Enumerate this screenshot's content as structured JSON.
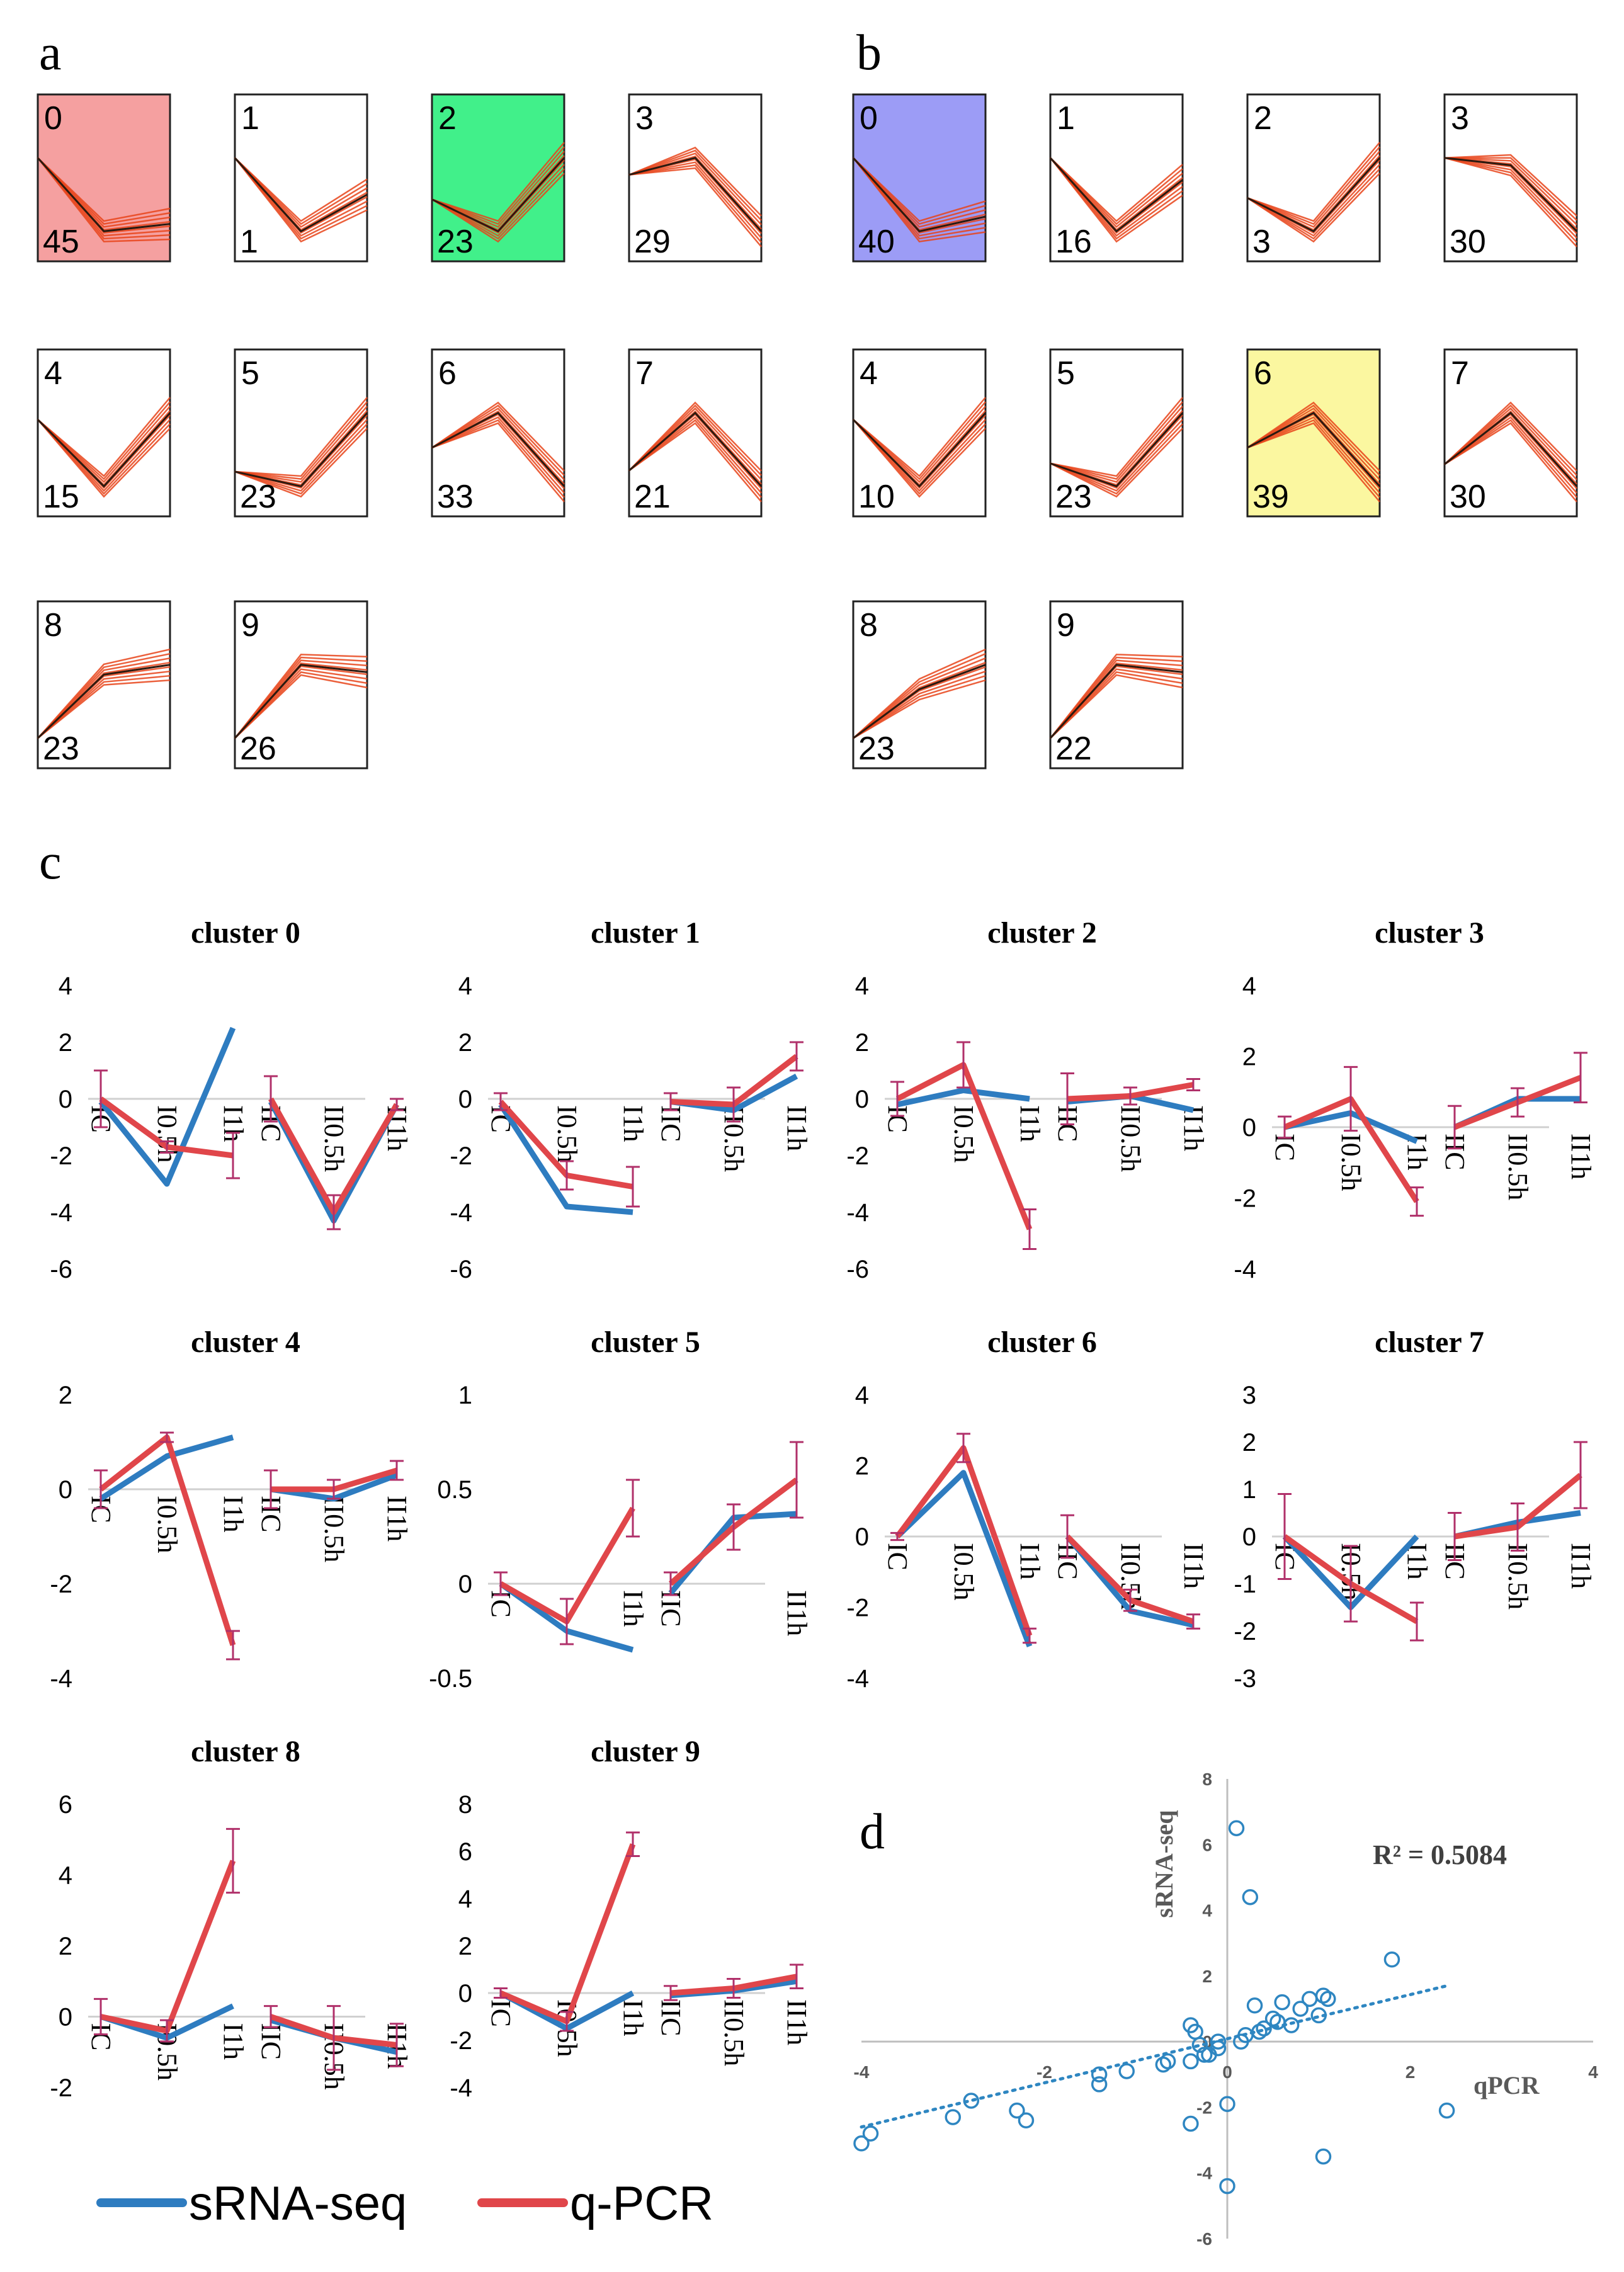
{
  "panel_labels": {
    "a": "a",
    "b": "b",
    "c": "c",
    "d": "d"
  },
  "colors": {
    "srna": "#2e7cc0",
    "qpcr": "#e0464a",
    "errbar": "#b0306a",
    "profile_line": "#e8441a",
    "profile_mean": "#2a1a10",
    "highlight_red": "#f5a0a0",
    "highlight_green": "#41f08a",
    "highlight_blue": "#9c9cf6",
    "highlight_yellow": "#fbf7a0",
    "scatter": "#2e86c1"
  },
  "chart_data": [
    {
      "type": "profile_grid",
      "panel": "a",
      "profiles": [
        {
          "id": "0",
          "count": "45",
          "shape": [
            1,
            0,
            0.1
          ],
          "highlight": "red"
        },
        {
          "id": "1",
          "count": "1",
          "shape": [
            1,
            0,
            0.5
          ],
          "highlight": "none"
        },
        {
          "id": "2",
          "count": "23",
          "shape": [
            1,
            0,
            2.3
          ],
          "highlight": "green"
        },
        {
          "id": "3",
          "count": "29",
          "shape": [
            1,
            1.3,
            0
          ],
          "highlight": "none"
        },
        {
          "id": "4",
          "count": "15",
          "shape": [
            1,
            0,
            1.1
          ],
          "highlight": "none"
        },
        {
          "id": "5",
          "count": "23",
          "shape": [
            0.8,
            0.5,
            2
          ],
          "highlight": "none"
        },
        {
          "id": "6",
          "count": "33",
          "shape": [
            1,
            1.9,
            0
          ],
          "highlight": "none"
        },
        {
          "id": "7",
          "count": "21",
          "shape": [
            0.9,
            2,
            0.6
          ],
          "highlight": "none"
        },
        {
          "id": "8",
          "count": "23",
          "shape": [
            0,
            1.3,
            1.5
          ],
          "highlight": "none"
        },
        {
          "id": "9",
          "count": "26",
          "shape": [
            0.3,
            1.3,
            1.2
          ],
          "highlight": "none"
        }
      ]
    },
    {
      "type": "profile_grid",
      "panel": "b",
      "profiles": [
        {
          "id": "0",
          "count": "40",
          "shape": [
            1,
            0,
            0.2
          ],
          "highlight": "blue"
        },
        {
          "id": "1",
          "count": "16",
          "shape": [
            1,
            0,
            0.7
          ],
          "highlight": "none"
        },
        {
          "id": "2",
          "count": "3",
          "shape": [
            1,
            0,
            2.2
          ],
          "highlight": "none"
        },
        {
          "id": "3",
          "count": "30",
          "shape": [
            1,
            0.9,
            0
          ],
          "highlight": "none"
        },
        {
          "id": "4",
          "count": "10",
          "shape": [
            1,
            0,
            1.1
          ],
          "highlight": "none"
        },
        {
          "id": "5",
          "count": "23",
          "shape": [
            0.8,
            0.3,
            1.9
          ],
          "highlight": "none"
        },
        {
          "id": "6",
          "count": "39",
          "shape": [
            1,
            1.9,
            0
          ],
          "highlight": "yellow"
        },
        {
          "id": "7",
          "count": "30",
          "shape": [
            0.9,
            1.6,
            0.6
          ],
          "highlight": "none"
        },
        {
          "id": "8",
          "count": "23",
          "shape": [
            0,
            1,
            1.5
          ],
          "highlight": "none"
        },
        {
          "id": "9",
          "count": "22",
          "shape": [
            0.3,
            1.3,
            1.2
          ],
          "highlight": "none"
        }
      ]
    },
    {
      "type": "line",
      "panel": "c",
      "legend": {
        "srna": "sRNA-seq",
        "qpcr": "q-PCR"
      },
      "clusters": [
        {
          "title": "cluster 0",
          "yticks": [
            "4",
            "2",
            "0",
            "-2",
            "-4",
            "-6"
          ],
          "ylim": [
            -6,
            4
          ],
          "g1_labels": [
            "IC",
            "I0.5h",
            "I1h"
          ],
          "g2_labels": [
            "IIC",
            "II0.5h",
            "II1h"
          ],
          "srna": [
            [
              -0.1,
              -3.0,
              2.5
            ],
            [
              -0.1,
              -4.3,
              -0.2
            ]
          ],
          "qpcr": [
            [
              0.0,
              -1.7,
              -2.0
            ],
            [
              0.0,
              -4.0,
              -0.2
            ]
          ],
          "err": [
            [
              1.0,
              0.2,
              0.8
            ],
            [
              0.8,
              0.6,
              0.2
            ]
          ]
        },
        {
          "title": "cluster 1",
          "yticks": [
            "4",
            "2",
            "0",
            "-2",
            "-4",
            "-6"
          ],
          "ylim": [
            -6,
            4
          ],
          "g1_labels": [
            "IC",
            "I0.5h",
            "I1h"
          ],
          "g2_labels": [
            "IIC",
            "II0.5h",
            "II1h"
          ],
          "srna": [
            [
              -0.2,
              -3.8,
              -4.0
            ],
            [
              -0.1,
              -0.4,
              0.8
            ]
          ],
          "qpcr": [
            [
              -0.1,
              -2.7,
              -3.1
            ],
            [
              -0.1,
              -0.2,
              1.5
            ]
          ],
          "err": [
            [
              0.3,
              0.5,
              0.7
            ],
            [
              0.3,
              0.6,
              0.5
            ]
          ]
        },
        {
          "title": "cluster 2",
          "yticks": [
            "4",
            "2",
            "0",
            "-2",
            "-4",
            "-6"
          ],
          "ylim": [
            -6,
            4
          ],
          "g1_labels": [
            "IC",
            "I0.5h",
            "I1h"
          ],
          "g2_labels": [
            "IIC",
            "II0.5h",
            "II1h"
          ],
          "srna": [
            [
              -0.2,
              0.3,
              0.0
            ],
            [
              -0.1,
              0.1,
              -0.4
            ]
          ],
          "qpcr": [
            [
              0.0,
              1.2,
              -4.6
            ],
            [
              0.0,
              0.1,
              0.5
            ]
          ],
          "err": [
            [
              0.6,
              0.8,
              0.7
            ],
            [
              0.9,
              0.3,
              0.2
            ]
          ]
        },
        {
          "title": "cluster 3",
          "yticks": [
            "4",
            "2",
            "0",
            "-2",
            "-4"
          ],
          "ylim": [
            -4,
            4
          ],
          "g1_labels": [
            "IC",
            "I0.5h",
            "I1h"
          ],
          "g2_labels": [
            "IIC",
            "II0.5h",
            "II1h"
          ],
          "srna": [
            [
              0.0,
              0.4,
              -0.4
            ],
            [
              0.0,
              0.8,
              0.8
            ]
          ],
          "qpcr": [
            [
              0.0,
              0.8,
              -2.1
            ],
            [
              0.0,
              0.7,
              1.4
            ]
          ],
          "err": [
            [
              0.3,
              0.9,
              0.4
            ],
            [
              0.6,
              0.4,
              0.7
            ]
          ]
        },
        {
          "title": "cluster 4",
          "yticks": [
            "2",
            "0",
            "-2",
            "-4"
          ],
          "ylim": [
            -4,
            2
          ],
          "g1_labels": [
            "IC",
            "I0.5h",
            "I1h"
          ],
          "g2_labels": [
            "IIC",
            "II0.5h",
            "II1h"
          ],
          "srna": [
            [
              -0.2,
              0.7,
              1.1
            ],
            [
              0.0,
              -0.2,
              0.3
            ]
          ],
          "qpcr": [
            [
              0.0,
              1.1,
              -3.3
            ],
            [
              0.0,
              0.0,
              0.4
            ]
          ],
          "err": [
            [
              0.4,
              0.1,
              0.3
            ],
            [
              0.4,
              0.2,
              0.2
            ]
          ]
        },
        {
          "title": "cluster 5",
          "yticks": [
            "1",
            "0.5",
            "0",
            "-0.5"
          ],
          "ylim": [
            -0.5,
            1
          ],
          "g1_labels": [
            "IC",
            "",
            "I1h"
          ],
          "g2_labels": [
            "IIC",
            "",
            "II1h"
          ],
          "srna": [
            [
              0.0,
              -0.25,
              -0.35
            ],
            [
              -0.05,
              0.35,
              0.37
            ]
          ],
          "qpcr": [
            [
              0.0,
              -0.2,
              0.4
            ],
            [
              0.0,
              0.3,
              0.55
            ]
          ],
          "err": [
            [
              0.06,
              0.12,
              0.15
            ],
            [
              0.06,
              0.12,
              0.2
            ]
          ]
        },
        {
          "title": "cluster 6",
          "yticks": [
            "4",
            "2",
            "0",
            "-2",
            "-4"
          ],
          "ylim": [
            -4,
            4
          ],
          "g1_labels": [
            "IC",
            "I0.5h",
            "I1h"
          ],
          "g2_labels": [
            "IIC",
            "II0.5h",
            "II1h"
          ],
          "srna": [
            [
              0.0,
              1.8,
              -3.1
            ],
            [
              0.0,
              -2.1,
              -2.5
            ]
          ],
          "qpcr": [
            [
              0.0,
              2.5,
              -2.8
            ],
            [
              0.0,
              -1.8,
              -2.4
            ]
          ],
          "err": [
            [
              0.1,
              0.4,
              0.2
            ],
            [
              0.6,
              0.3,
              0.2
            ]
          ]
        },
        {
          "title": "cluster 7",
          "yticks": [
            "3",
            "2",
            "1",
            "0",
            "-1",
            "-2",
            "-3"
          ],
          "ylim": [
            -3,
            3
          ],
          "g1_labels": [
            "IC",
            "I0.5h",
            "I1h"
          ],
          "g2_labels": [
            "IIC",
            "II0.5h",
            "II1h"
          ],
          "srna": [
            [
              0.0,
              -1.5,
              0.0
            ],
            [
              0.0,
              0.3,
              0.5
            ]
          ],
          "qpcr": [
            [
              0.0,
              -1.0,
              -1.8
            ],
            [
              0.0,
              0.2,
              1.3
            ]
          ],
          "err": [
            [
              0.9,
              0.8,
              0.4
            ],
            [
              0.5,
              0.5,
              0.7
            ]
          ]
        },
        {
          "title": "cluster 8",
          "yticks": [
            "6",
            "4",
            "2",
            "0",
            "-2"
          ],
          "ylim": [
            -2,
            6
          ],
          "g1_labels": [
            "IC",
            "I0.5h",
            "I1h"
          ],
          "g2_labels": [
            "IIC",
            "II0.5h",
            "II1h"
          ],
          "srna": [
            [
              0.0,
              -0.6,
              0.3
            ],
            [
              -0.1,
              -0.6,
              -1.0
            ]
          ],
          "qpcr": [
            [
              0.0,
              -0.4,
              4.4
            ],
            [
              0.0,
              -0.6,
              -0.8
            ]
          ],
          "err": [
            [
              0.5,
              0.3,
              0.9
            ],
            [
              0.3,
              0.9,
              0.6
            ]
          ]
        },
        {
          "title": "cluster 9",
          "yticks": [
            "8",
            "6",
            "4",
            "2",
            "0",
            "-2",
            "-4"
          ],
          "ylim": [
            -4,
            8
          ],
          "g1_labels": [
            "IC",
            "I0.5h",
            "I1h"
          ],
          "g2_labels": [
            "IIC",
            "II0.5h",
            "II1h"
          ],
          "srna": [
            [
              0.0,
              -1.5,
              0.0
            ],
            [
              -0.1,
              0.1,
              0.5
            ]
          ],
          "qpcr": [
            [
              0.0,
              -1.2,
              6.3
            ],
            [
              0.0,
              0.2,
              0.7
            ]
          ],
          "err": [
            [
              0.2,
              0.4,
              0.5
            ],
            [
              0.3,
              0.4,
              0.5
            ]
          ]
        }
      ]
    },
    {
      "type": "scatter",
      "panel": "d",
      "xlabel": "qPCR",
      "ylabel": "sRNA-seq",
      "annotation": "R² = 0.5084",
      "xlim": [
        -4,
        4
      ],
      "ylim": [
        -6,
        8
      ],
      "xticks": [
        "-4",
        "-2",
        "0",
        "2",
        "4"
      ],
      "yticks": [
        "8",
        "6",
        "4",
        "2",
        "0",
        "-2",
        "-4",
        "-6"
      ],
      "trendline": {
        "x0": -4,
        "y0": -2.6,
        "x1": 2.4,
        "y1": 1.7
      },
      "points": [
        [
          -4.0,
          -3.1
        ],
        [
          -3.9,
          -2.8
        ],
        [
          -3.0,
          -2.3
        ],
        [
          -2.8,
          -1.8
        ],
        [
          -2.3,
          -2.1
        ],
        [
          -2.2,
          -2.4
        ],
        [
          -1.4,
          -1.3
        ],
        [
          -1.4,
          -1.0
        ],
        [
          -1.1,
          -0.9
        ],
        [
          -0.7,
          -0.7
        ],
        [
          -0.65,
          -0.6
        ],
        [
          -0.4,
          -0.6
        ],
        [
          -0.4,
          0.5
        ],
        [
          -0.35,
          0.3
        ],
        [
          -0.3,
          -0.1
        ],
        [
          -0.25,
          -0.4
        ],
        [
          -0.2,
          -0.4
        ],
        [
          -0.1,
          -0.2
        ],
        [
          -0.1,
          0.0
        ],
        [
          0.1,
          6.5
        ],
        [
          0.25,
          4.4
        ],
        [
          0.0,
          -1.9
        ],
        [
          -0.4,
          -2.5
        ],
        [
          0.0,
          -4.4
        ],
        [
          0.15,
          0.0
        ],
        [
          0.2,
          0.2
        ],
        [
          0.3,
          1.1
        ],
        [
          0.35,
          0.3
        ],
        [
          0.4,
          0.4
        ],
        [
          0.5,
          0.7
        ],
        [
          0.55,
          0.6
        ],
        [
          0.6,
          1.2
        ],
        [
          0.7,
          0.5
        ],
        [
          0.8,
          1.0
        ],
        [
          0.9,
          1.3
        ],
        [
          1.0,
          0.8
        ],
        [
          1.05,
          1.4
        ],
        [
          1.1,
          1.3
        ],
        [
          1.05,
          -3.5
        ],
        [
          1.8,
          2.5
        ],
        [
          2.4,
          -2.1
        ]
      ]
    }
  ]
}
